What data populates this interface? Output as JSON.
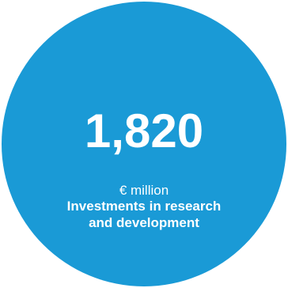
{
  "stat": {
    "value": "1,820",
    "unit": "€ million",
    "label_line1": "Investments in research",
    "label_line2": "and development"
  },
  "colors": {
    "circle": "#1a9ad6",
    "text": "#ffffff",
    "background": "#ffffff"
  }
}
